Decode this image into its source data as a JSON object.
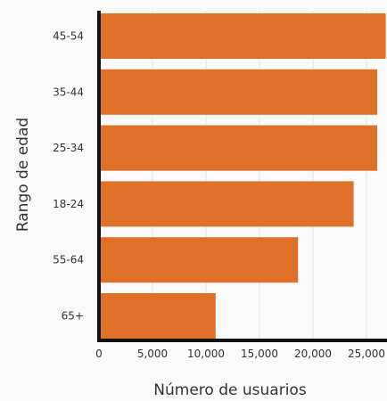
{
  "chart_data": {
    "type": "bar",
    "orientation": "horizontal",
    "title": "",
    "xlabel": "Número de usuarios",
    "ylabel": "Rango de edad",
    "categories": [
      "45-54",
      "35-44",
      "25-34",
      "18-24",
      "55-64",
      "65+"
    ],
    "values": [
      26800,
      26000,
      26000,
      23800,
      18600,
      10900
    ],
    "xlim": [
      0,
      27500
    ],
    "x_ticks": [
      0,
      5000,
      10000,
      15000,
      20000,
      25000
    ],
    "x_tick_labels": [
      "0",
      "5,000",
      "10,000",
      "15,000",
      "20,000",
      "25,000"
    ],
    "grid": true,
    "legend": "none",
    "colors": {
      "bar": "#E07028",
      "axis": "#111111",
      "grid": "#e4e4e4",
      "background": "#fafafa"
    }
  }
}
